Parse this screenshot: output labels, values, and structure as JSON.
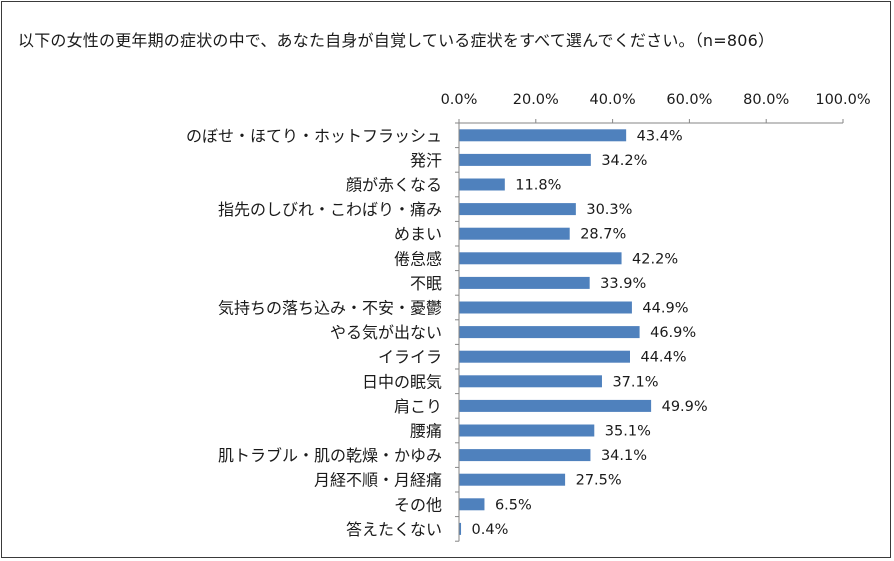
{
  "chart_data": {
    "type": "bar",
    "orientation": "horizontal",
    "title": "以下の女性の更年期の症状の中で、あなた自身が自覚している症状をすべて選んでください。（n=806）",
    "categories": [
      "のぼせ・ほてり・ホットフラッシュ",
      "発汗",
      "顔が赤くなる",
      "指先のしびれ・こわばり・痛み",
      "めまい",
      "倦怠感",
      "不眠",
      "気持ちの落ち込み・不安・憂鬱",
      "やる気が出ない",
      "イライラ",
      "日中の眠気",
      "肩こり",
      "腰痛",
      "肌トラブル・肌の乾燥・かゆみ",
      "月経不順・月経痛",
      "その他",
      "答えたくない"
    ],
    "values": [
      43.4,
      34.2,
      11.8,
      30.3,
      28.7,
      42.2,
      33.9,
      44.9,
      46.9,
      44.4,
      37.1,
      49.9,
      35.1,
      34.1,
      27.5,
      6.5,
      0.4
    ],
    "value_labels": [
      "43.4%",
      "34.2%",
      "11.8%",
      "30.3%",
      "28.7%",
      "42.2%",
      "33.9%",
      "44.9%",
      "46.9%",
      "44.4%",
      "37.1%",
      "49.9%",
      "35.1%",
      "34.1%",
      "27.5%",
      "6.5%",
      "0.4%"
    ],
    "xlim": [
      0,
      100
    ],
    "xticks": [
      0,
      20,
      40,
      60,
      80,
      100
    ],
    "xtick_labels": [
      "0.0%",
      "20.0%",
      "40.0%",
      "60.0%",
      "80.0%",
      "100.0%"
    ],
    "axis_position": "top",
    "unit": "%",
    "bar_color": "#4f81bd",
    "grid": false,
    "legend": "none"
  }
}
